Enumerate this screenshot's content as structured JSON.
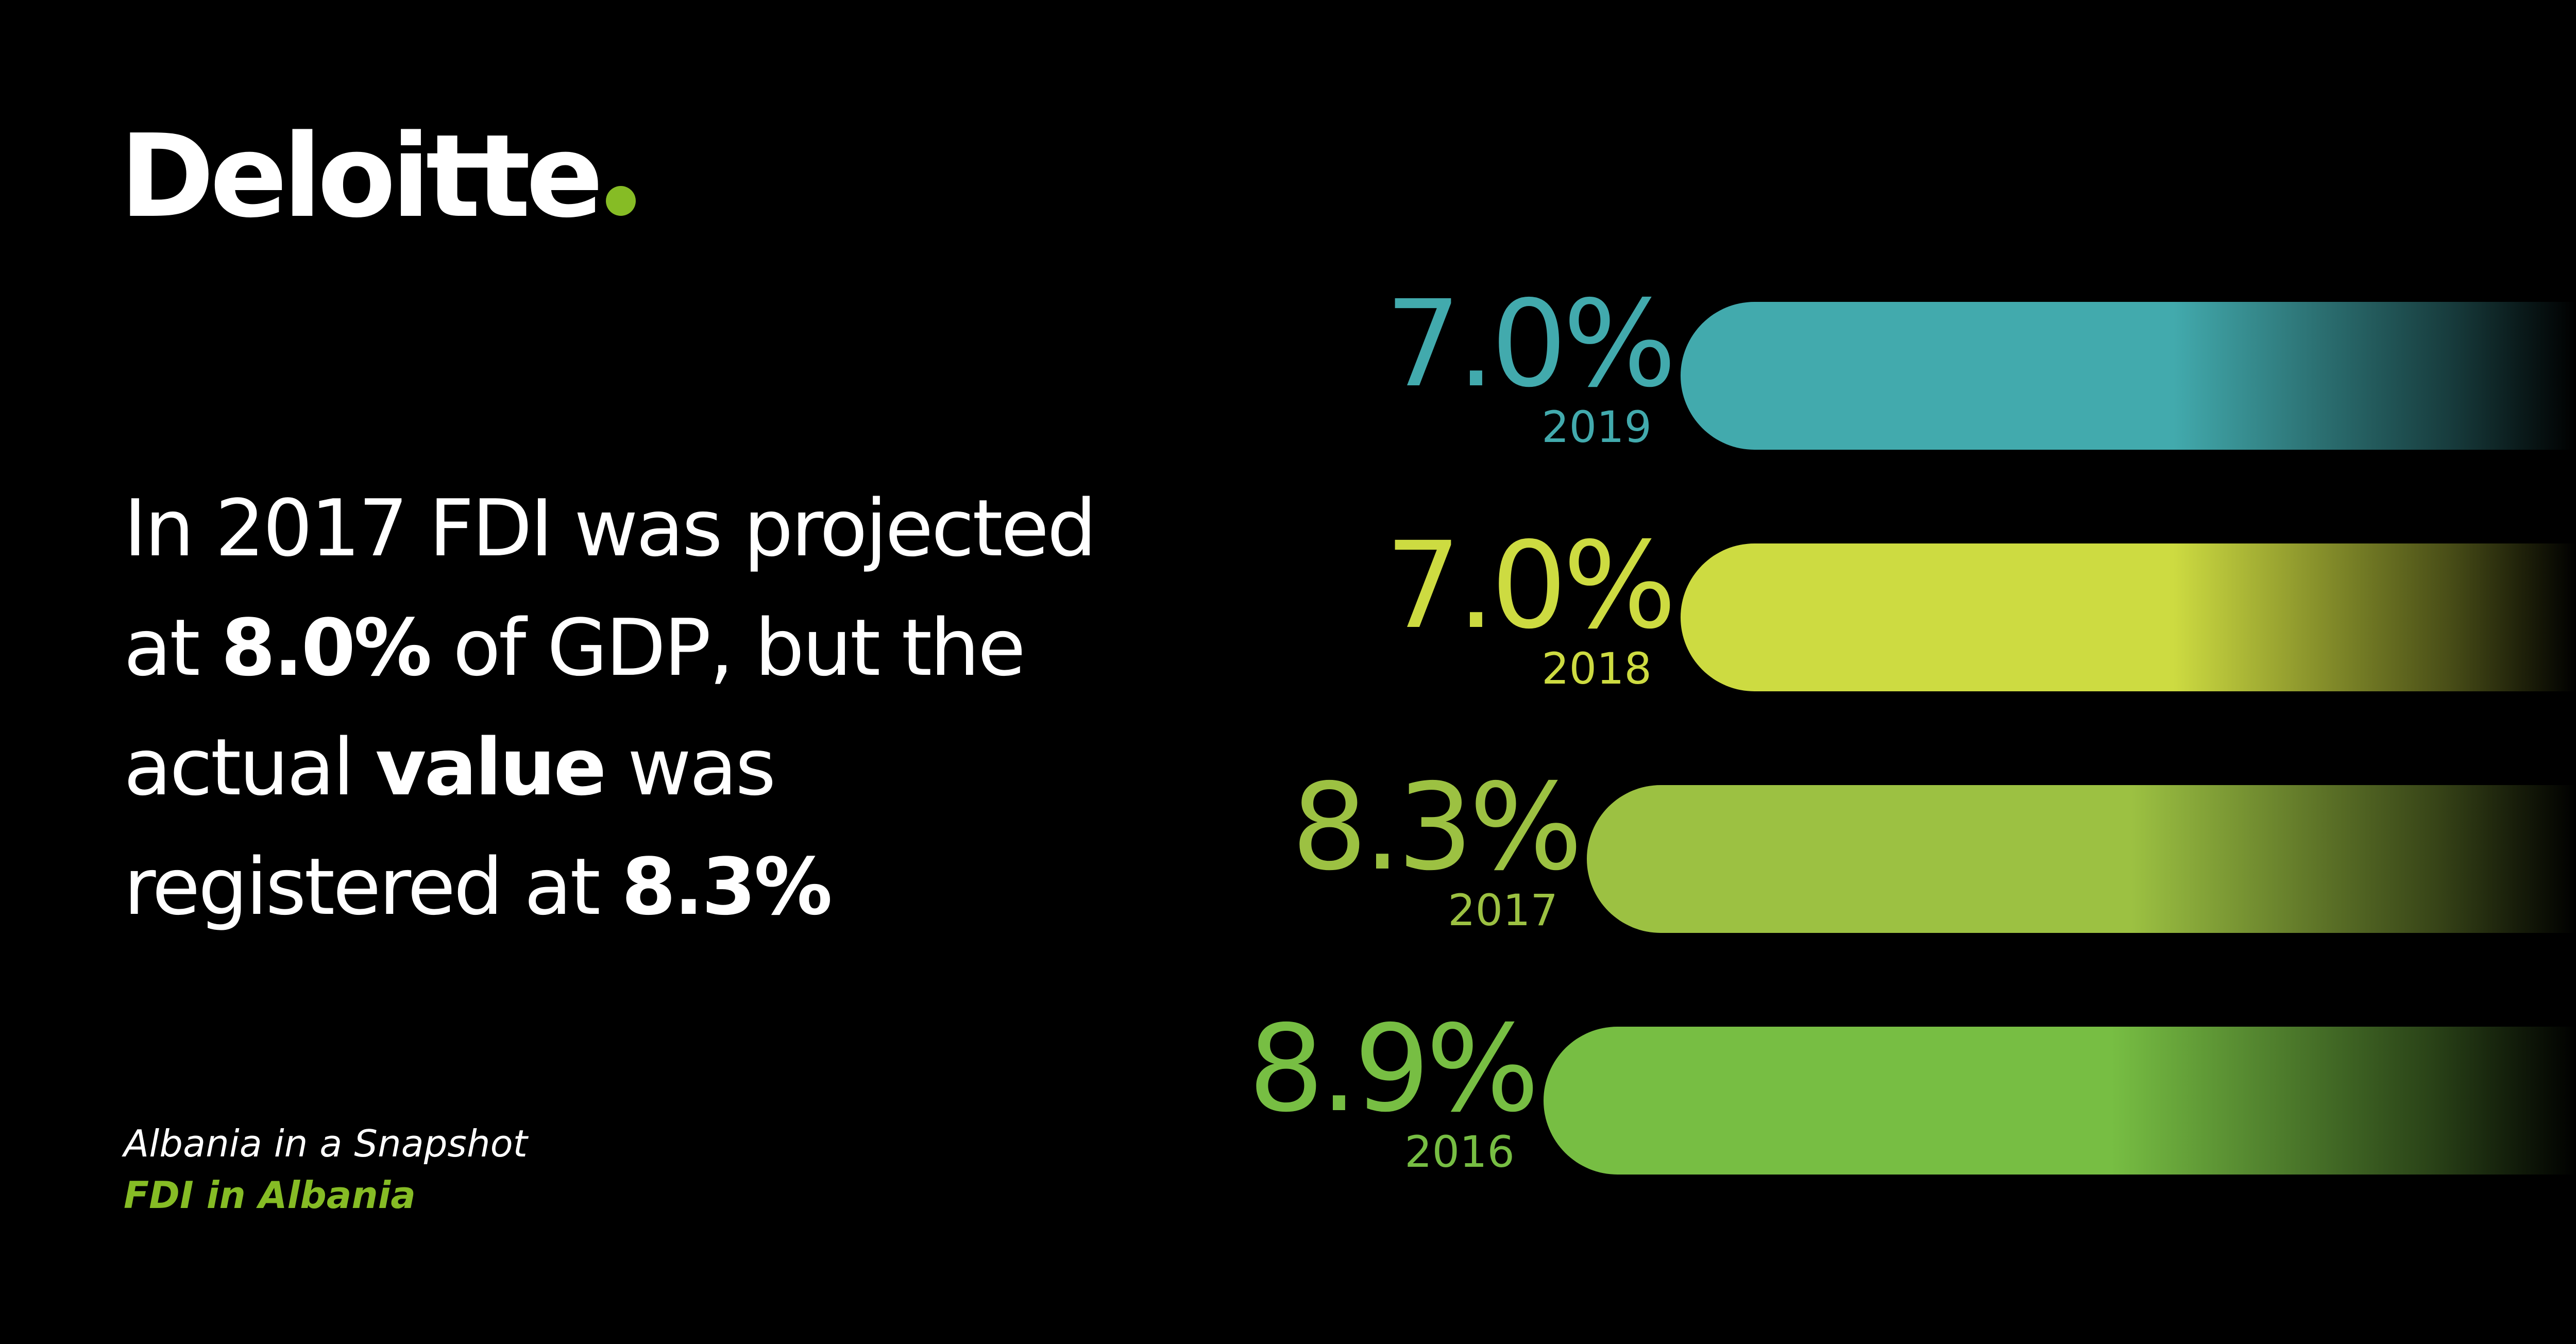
{
  "brand": {
    "name": "Deloitte",
    "dot_color": "#86bc25"
  },
  "headline": {
    "l1": "In 2017 FDI was projected",
    "l2a": "at ",
    "l2b": "8.0%",
    "l2c": " of GDP, but the",
    "l3a": "actual ",
    "l3b": "value",
    "l3c": " was",
    "l4a": "registered at ",
    "l4b": "8.3%"
  },
  "footer": {
    "subtitle": "Albania in a Snapshot",
    "topic": "FDI in Albania"
  },
  "chart_data": {
    "type": "bar",
    "orientation": "horizontal",
    "unit": "% of GDP",
    "categories": [
      "2019",
      "2018",
      "2017",
      "2016"
    ],
    "values": [
      7.0,
      7.0,
      8.3,
      8.9
    ],
    "value_labels": [
      "7.0%",
      "7.0%",
      "8.3%",
      "8.9%"
    ],
    "colors": [
      "#42aaad",
      "#cddb41",
      "#9cc142",
      "#77be43"
    ],
    "title": "",
    "xlabel": "",
    "ylabel": "",
    "grid": false,
    "legend": "none"
  }
}
